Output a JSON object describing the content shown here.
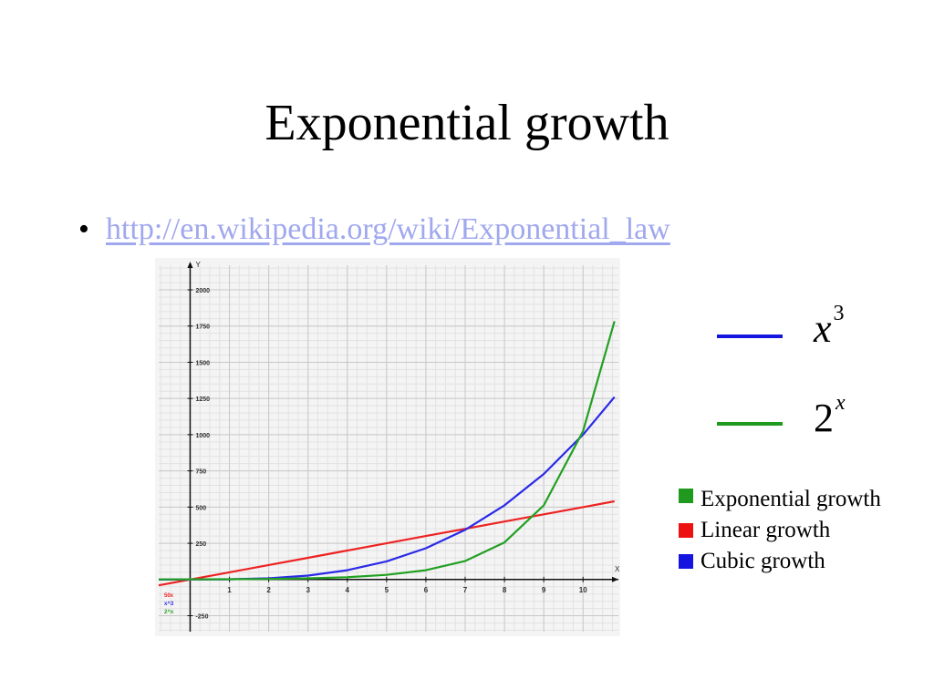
{
  "slide": {
    "title": "Exponential growth",
    "bullet_symbol": "•",
    "link_text": "http://en.wikipedia.org/wiki/Exponential_law"
  },
  "legend_math": [
    {
      "base": "x",
      "exp": "3",
      "color": "#1515e0"
    },
    {
      "base": "2",
      "exp": "x",
      "color": "#1f9a1f"
    }
  ],
  "legend_text": [
    {
      "label": "Exponential growth",
      "color": "#1f9a1f"
    },
    {
      "label": "Linear growth",
      "color": "#ee1111"
    },
    {
      "label": "Cubic growth",
      "color": "#1515e0"
    }
  ],
  "chart_data": {
    "type": "line",
    "xlabel": "X",
    "ylabel": "Y",
    "xlim": [
      -0.8,
      10.9
    ],
    "ylim": [
      -360,
      2170
    ],
    "x_ticks": [
      1,
      2,
      3,
      4,
      5,
      6,
      7,
      8,
      9,
      10
    ],
    "y_ticks": [
      -250,
      250,
      500,
      750,
      1000,
      1250,
      1500,
      1750,
      2000
    ],
    "grid": true,
    "legend_position": "bottom-left",
    "series": [
      {
        "name": "50x",
        "color": "#ee2222",
        "x": [
          -0.8,
          0,
          1,
          2,
          3,
          4,
          5,
          6,
          7,
          8,
          9,
          10,
          10.8
        ],
        "y": [
          -40,
          0,
          50,
          100,
          150,
          200,
          250,
          300,
          350,
          400,
          450,
          500,
          540
        ]
      },
      {
        "name": "x^3",
        "color": "#2a2ae8",
        "x": [
          -0.8,
          0,
          1,
          2,
          3,
          4,
          5,
          6,
          7,
          8,
          9,
          10,
          10.8
        ],
        "y": [
          -0.5,
          0,
          1,
          8,
          27,
          64,
          125,
          216,
          343,
          512,
          729,
          1000,
          1260
        ]
      },
      {
        "name": "2^x",
        "color": "#22a022",
        "x": [
          -0.8,
          0,
          1,
          2,
          3,
          4,
          5,
          6,
          7,
          8,
          9,
          10,
          10.8
        ],
        "y": [
          0.6,
          1,
          2,
          4,
          8,
          16,
          32,
          64,
          128,
          256,
          512,
          1024,
          1783
        ]
      }
    ]
  }
}
